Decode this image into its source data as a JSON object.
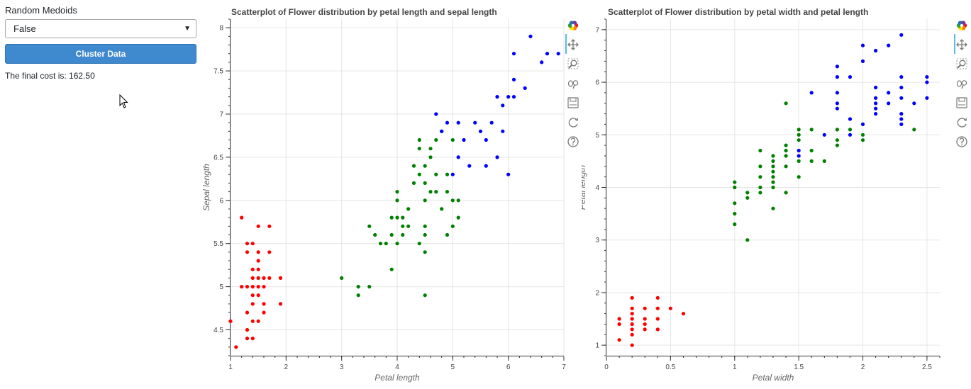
{
  "controls": {
    "label": "Random Medoids",
    "select_value": "False",
    "button_label": "Cluster Data",
    "cost_text": "The final cost is: 162.50"
  },
  "colors": {
    "cluster_0": "#ff0000",
    "cluster_1": "#008000",
    "cluster_2": "#0000ff"
  },
  "toolbar": [
    "bokeh-logo-icon",
    "pan-icon",
    "box-zoom-icon",
    "wheel-zoom-icon",
    "save-icon",
    "reset-icon",
    "help-icon"
  ],
  "chart_data": [
    {
      "type": "scatter",
      "title": "Scatterplot of Flower distribution by petal length and sepal length",
      "xlabel": "Petal length",
      "ylabel": "Sepal length",
      "xlim": [
        1,
        7
      ],
      "ylim": [
        4.2,
        8.1
      ],
      "xticks": [
        1,
        2,
        3,
        4,
        5,
        6,
        7
      ],
      "yticks": [
        4.5,
        5,
        5.5,
        6,
        6.5,
        7,
        7.5,
        8
      ],
      "tick_labels_x": [
        "1",
        "2",
        "3",
        "4",
        "5",
        "6",
        "7"
      ],
      "tick_labels_y": [
        "4.5",
        "5",
        "5.5",
        "6",
        "6.5",
        "7",
        "7.5",
        "8"
      ],
      "grid": true,
      "series": [
        {
          "color": "#ff0000",
          "points": [
            [
              1.0,
              4.6
            ],
            [
              1.1,
              4.3
            ],
            [
              1.2,
              5.8
            ],
            [
              1.2,
              5.0
            ],
            [
              1.3,
              5.5
            ],
            [
              1.3,
              5.4
            ],
            [
              1.3,
              5.0
            ],
            [
              1.3,
              4.7
            ],
            [
              1.3,
              4.5
            ],
            [
              1.3,
              4.4
            ],
            [
              1.4,
              5.5
            ],
            [
              1.4,
              5.2
            ],
            [
              1.4,
              5.1
            ],
            [
              1.4,
              5.0
            ],
            [
              1.4,
              4.9
            ],
            [
              1.4,
              4.8
            ],
            [
              1.4,
              4.6
            ],
            [
              1.4,
              4.4
            ],
            [
              1.5,
              5.7
            ],
            [
              1.5,
              5.4
            ],
            [
              1.5,
              5.3
            ],
            [
              1.5,
              5.2
            ],
            [
              1.5,
              5.1
            ],
            [
              1.5,
              5.0
            ],
            [
              1.5,
              4.9
            ],
            [
              1.5,
              4.6
            ],
            [
              1.6,
              5.1
            ],
            [
              1.6,
              5.0
            ],
            [
              1.6,
              4.8
            ],
            [
              1.6,
              4.7
            ],
            [
              1.7,
              5.7
            ],
            [
              1.7,
              5.4
            ],
            [
              1.7,
              5.1
            ],
            [
              1.9,
              5.1
            ],
            [
              1.9,
              4.8
            ]
          ]
        },
        {
          "color": "#008000",
          "points": [
            [
              3.0,
              5.1
            ],
            [
              3.3,
              5.0
            ],
            [
              3.3,
              4.9
            ],
            [
              3.5,
              5.7
            ],
            [
              3.5,
              5.0
            ],
            [
              3.6,
              5.6
            ],
            [
              3.7,
              5.5
            ],
            [
              3.8,
              5.5
            ],
            [
              3.9,
              5.8
            ],
            [
              3.9,
              5.6
            ],
            [
              3.9,
              5.2
            ],
            [
              4.0,
              6.1
            ],
            [
              4.0,
              6.0
            ],
            [
              4.0,
              5.8
            ],
            [
              4.0,
              5.5
            ],
            [
              4.1,
              5.8
            ],
            [
              4.1,
              5.7
            ],
            [
              4.1,
              5.6
            ],
            [
              4.2,
              5.9
            ],
            [
              4.2,
              5.7
            ],
            [
              4.3,
              6.4
            ],
            [
              4.3,
              6.2
            ],
            [
              4.4,
              6.7
            ],
            [
              4.4,
              6.6
            ],
            [
              4.4,
              6.3
            ],
            [
              4.4,
              5.5
            ],
            [
              4.5,
              6.4
            ],
            [
              4.5,
              6.2
            ],
            [
              4.5,
              6.0
            ],
            [
              4.5,
              5.7
            ],
            [
              4.5,
              5.6
            ],
            [
              4.5,
              5.4
            ],
            [
              4.5,
              4.9
            ],
            [
              4.6,
              6.5
            ],
            [
              4.6,
              6.6
            ],
            [
              4.6,
              6.1
            ],
            [
              4.7,
              6.7
            ],
            [
              4.7,
              6.3
            ],
            [
              4.7,
              6.1
            ],
            [
              4.8,
              6.8
            ],
            [
              4.8,
              5.9
            ],
            [
              4.9,
              6.3
            ],
            [
              4.9,
              6.1
            ],
            [
              4.9,
              5.6
            ],
            [
              5.0,
              6.7
            ],
            [
              5.0,
              6.0
            ],
            [
              5.0,
              5.7
            ],
            [
              5.1,
              6.0
            ],
            [
              5.1,
              5.8
            ]
          ]
        },
        {
          "color": "#0000ff",
          "points": [
            [
              4.7,
              7.0
            ],
            [
              4.8,
              6.8
            ],
            [
              4.9,
              6.9
            ],
            [
              5.0,
              6.3
            ],
            [
              5.1,
              6.9
            ],
            [
              5.1,
              6.5
            ],
            [
              5.2,
              6.7
            ],
            [
              5.3,
              6.4
            ],
            [
              5.4,
              6.9
            ],
            [
              5.5,
              6.8
            ],
            [
              5.6,
              6.7
            ],
            [
              5.6,
              6.4
            ],
            [
              5.7,
              6.9
            ],
            [
              5.8,
              7.2
            ],
            [
              5.8,
              6.5
            ],
            [
              5.9,
              7.1
            ],
            [
              5.9,
              6.8
            ],
            [
              6.0,
              7.2
            ],
            [
              6.0,
              6.3
            ],
            [
              6.1,
              7.7
            ],
            [
              6.1,
              7.4
            ],
            [
              6.1,
              7.2
            ],
            [
              6.3,
              7.3
            ],
            [
              6.4,
              7.9
            ],
            [
              6.6,
              7.6
            ],
            [
              6.7,
              7.7
            ],
            [
              6.9,
              7.7
            ]
          ]
        }
      ]
    },
    {
      "type": "scatter",
      "title": "Scatterplot of Flower distribution by petal width and petal length",
      "xlabel": "Petal width",
      "ylabel": "Petal length",
      "xlim": [
        0,
        2.6
      ],
      "ylim": [
        0.8,
        7.2
      ],
      "xticks": [
        0,
        0.5,
        1,
        1.5,
        2,
        2.5
      ],
      "yticks": [
        1,
        2,
        3,
        4,
        5,
        6,
        7
      ],
      "tick_labels_x": [
        "0",
        "0.5",
        "1",
        "1.5",
        "2",
        "2.5"
      ],
      "tick_labels_y": [
        "1",
        "2",
        "3",
        "4",
        "5",
        "6",
        "7"
      ],
      "grid": true,
      "series": [
        {
          "color": "#ff0000",
          "points": [
            [
              0.1,
              1.5
            ],
            [
              0.1,
              1.4
            ],
            [
              0.1,
              1.1
            ],
            [
              0.2,
              1.9
            ],
            [
              0.2,
              1.7
            ],
            [
              0.2,
              1.6
            ],
            [
              0.2,
              1.5
            ],
            [
              0.2,
              1.4
            ],
            [
              0.2,
              1.3
            ],
            [
              0.2,
              1.2
            ],
            [
              0.2,
              1.0
            ],
            [
              0.3,
              1.7
            ],
            [
              0.3,
              1.5
            ],
            [
              0.3,
              1.4
            ],
            [
              0.3,
              1.3
            ],
            [
              0.4,
              1.9
            ],
            [
              0.4,
              1.7
            ],
            [
              0.4,
              1.5
            ],
            [
              0.4,
              1.3
            ],
            [
              0.5,
              1.7
            ],
            [
              0.6,
              1.6
            ]
          ]
        },
        {
          "color": "#008000",
          "points": [
            [
              1.0,
              4.1
            ],
            [
              1.0,
              4.0
            ],
            [
              1.0,
              3.7
            ],
            [
              1.0,
              3.5
            ],
            [
              1.0,
              3.3
            ],
            [
              1.1,
              3.9
            ],
            [
              1.1,
              3.8
            ],
            [
              1.1,
              3.0
            ],
            [
              1.2,
              4.7
            ],
            [
              1.2,
              4.4
            ],
            [
              1.2,
              4.2
            ],
            [
              1.2,
              4.0
            ],
            [
              1.2,
              3.9
            ],
            [
              1.3,
              4.6
            ],
            [
              1.3,
              4.5
            ],
            [
              1.3,
              4.4
            ],
            [
              1.3,
              4.3
            ],
            [
              1.3,
              4.2
            ],
            [
              1.3,
              4.1
            ],
            [
              1.3,
              4.0
            ],
            [
              1.3,
              3.6
            ],
            [
              1.4,
              5.6
            ],
            [
              1.4,
              4.8
            ],
            [
              1.4,
              4.7
            ],
            [
              1.4,
              4.6
            ],
            [
              1.4,
              4.4
            ],
            [
              1.4,
              3.9
            ],
            [
              1.5,
              5.1
            ],
            [
              1.5,
              5.0
            ],
            [
              1.5,
              4.9
            ],
            [
              1.5,
              4.5
            ],
            [
              1.5,
              4.2
            ],
            [
              1.6,
              5.1
            ],
            [
              1.6,
              4.7
            ],
            [
              1.6,
              4.5
            ],
            [
              1.7,
              4.5
            ],
            [
              1.8,
              5.1
            ],
            [
              1.8,
              4.9
            ],
            [
              1.8,
              4.8
            ],
            [
              1.9,
              5.1
            ],
            [
              2.0,
              5.0
            ],
            [
              2.0,
              4.9
            ],
            [
              2.4,
              5.1
            ]
          ]
        },
        {
          "color": "#0000ff",
          "points": [
            [
              1.5,
              4.7
            ],
            [
              1.5,
              4.6
            ],
            [
              1.6,
              5.8
            ],
            [
              1.7,
              5.0
            ],
            [
              1.8,
              6.3
            ],
            [
              1.8,
              6.1
            ],
            [
              1.8,
              5.8
            ],
            [
              1.8,
              5.6
            ],
            [
              1.8,
              5.5
            ],
            [
              1.9,
              6.1
            ],
            [
              1.9,
              5.3
            ],
            [
              1.9,
              5.0
            ],
            [
              2.0,
              6.7
            ],
            [
              2.0,
              6.4
            ],
            [
              2.0,
              5.2
            ],
            [
              2.1,
              6.6
            ],
            [
              2.1,
              5.9
            ],
            [
              2.1,
              5.7
            ],
            [
              2.1,
              5.6
            ],
            [
              2.1,
              5.5
            ],
            [
              2.1,
              5.4
            ],
            [
              2.2,
              6.7
            ],
            [
              2.2,
              5.8
            ],
            [
              2.2,
              5.6
            ],
            [
              2.3,
              6.9
            ],
            [
              2.3,
              6.1
            ],
            [
              2.3,
              5.9
            ],
            [
              2.3,
              5.7
            ],
            [
              2.3,
              5.4
            ],
            [
              2.3,
              5.3
            ],
            [
              2.3,
              5.2
            ],
            [
              2.4,
              5.6
            ],
            [
              2.5,
              6.1
            ],
            [
              2.5,
              6.0
            ],
            [
              2.5,
              5.7
            ]
          ]
        }
      ]
    }
  ]
}
